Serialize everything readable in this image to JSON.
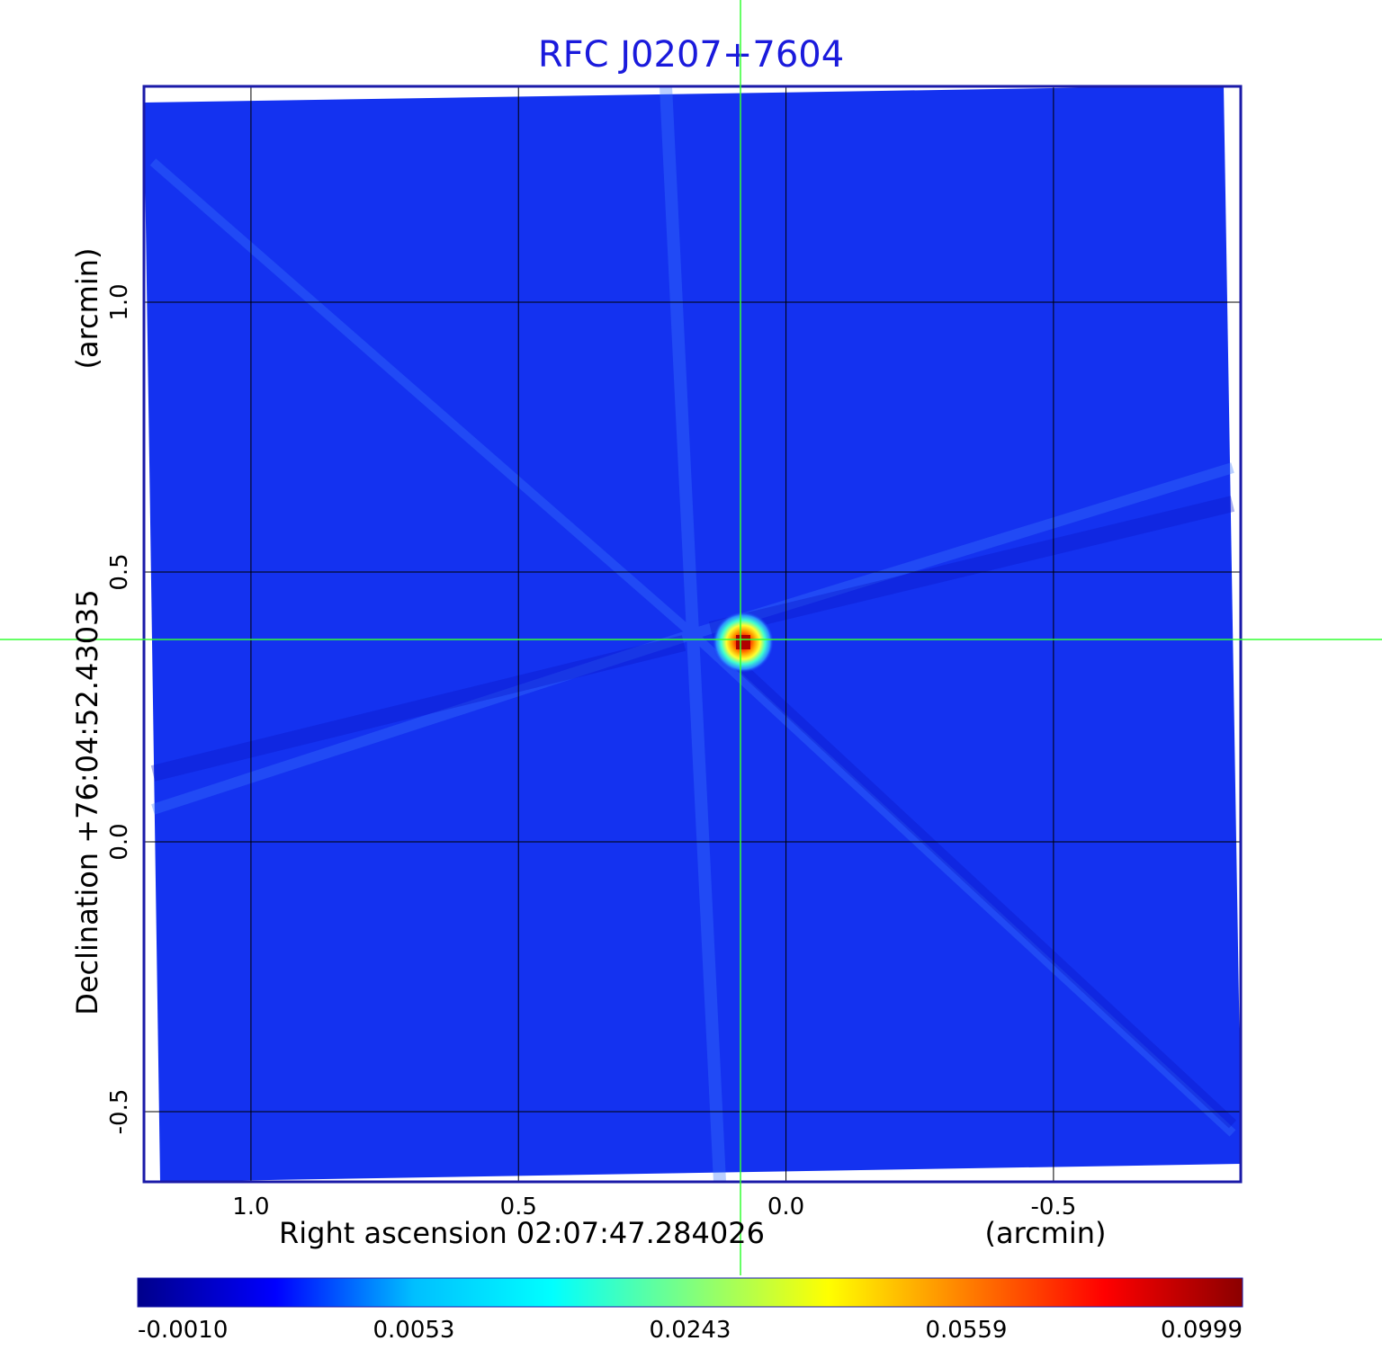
{
  "chart_data": {
    "type": "heatmap",
    "title": "RFC J0207+7604",
    "xlabel": "Right ascension  02:07:47.284026",
    "xunit": "(arcmin)",
    "ylabel": "Declination  +76:04:52.43035",
    "yunit": "(arcmin)",
    "xlim": [
      1.2,
      -0.85
    ],
    "ylim": [
      -0.63,
      1.4
    ],
    "x_ticks": [
      1.0,
      0.5,
      0.0,
      -0.5
    ],
    "x_tick_labels": [
      "1.0",
      "0.5",
      "0.0",
      "-0.5"
    ],
    "y_ticks": [
      -0.5,
      0.0,
      0.5,
      1.0
    ],
    "y_tick_labels": [
      "-0.5",
      "0.0",
      "0.5",
      "1.0"
    ],
    "grid": true,
    "crosshair": {
      "x": 0.085,
      "y": 0.375
    },
    "source_peak": {
      "x": 0.08,
      "y": 0.37,
      "value": 0.0999
    },
    "colorbar": {
      "min": -0.001,
      "max": 0.0999,
      "tick_labels": [
        "-0.0010",
        "0.0053",
        "0.0243",
        "0.0559",
        "0.0999"
      ],
      "colormap": [
        "#00008b",
        "#0000ff",
        "#00bfff",
        "#00ffff",
        "#7fff7f",
        "#ffff00",
        "#ff7f00",
        "#ff0000",
        "#8b0000"
      ]
    },
    "colors": {
      "title": "#1a1adc",
      "frame": "#1a1aa8",
      "background_field": "#1432f0",
      "grid": "#000000",
      "crosshair": "#33ff33"
    }
  }
}
